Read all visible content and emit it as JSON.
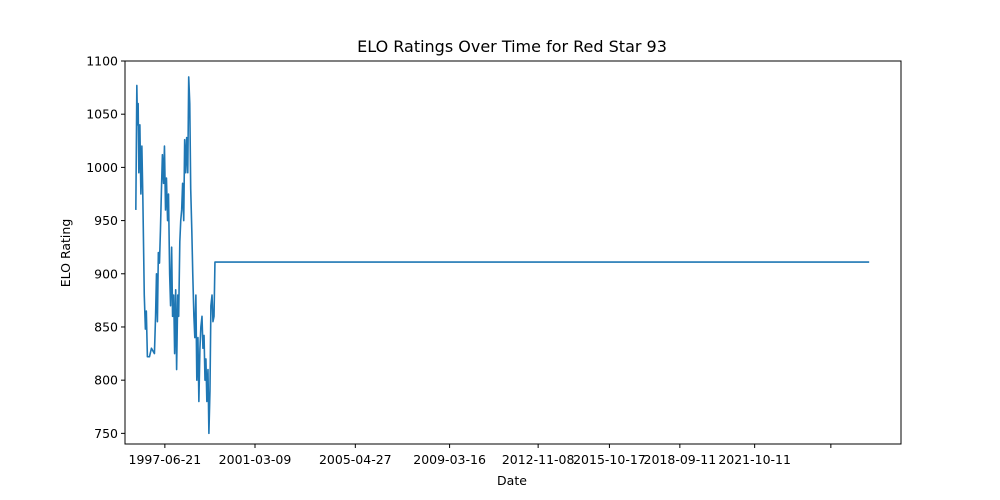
{
  "chart_data": {
    "type": "line",
    "title": "ELO Ratings Over Time for Red Star 93",
    "xlabel": "Date",
    "ylabel": "ELO Rating",
    "x_axis_type": "date",
    "xlim": [
      "1995-10-30",
      "2027-10-23"
    ],
    "ylim": [
      740,
      1100
    ],
    "x_ticks": [
      "1997-06-21",
      "2001-03-09",
      "2005-04-27",
      "2009-03-16",
      "2012-11-08",
      "2015-10-17",
      "2018-09-11",
      "2021-10-11",
      ""
    ],
    "x_tick_dates": [
      "1997-06-21",
      "2001-03-09",
      "2005-04-27",
      "2009-03-16",
      "2012-11-08",
      "2015-10-17",
      "2018-09-11",
      "2021-10-11",
      "2024-12-01"
    ],
    "y_ticks": [
      750,
      800,
      850,
      900,
      950,
      1000,
      1050,
      1100
    ],
    "grid": false,
    "legend": "none",
    "series": [
      {
        "color": "#1f77b4",
        "x": [
          "1996-04-10",
          "1996-04-25",
          "1996-05-05",
          "1996-05-15",
          "1996-05-25",
          "1996-06-10",
          "1996-06-25",
          "1996-07-10",
          "1996-07-25",
          "1996-08-15",
          "1996-09-01",
          "1996-09-15",
          "1996-10-01",
          "1996-11-01",
          "1996-12-01",
          "1997-01-15",
          "1997-02-01",
          "1997-02-15",
          "1997-03-01",
          "1997-03-15",
          "1997-04-01",
          "1997-04-15",
          "1997-05-01",
          "1997-05-15",
          "1997-06-01",
          "1997-06-15",
          "1997-07-01",
          "1997-07-15",
          "1997-08-01",
          "1997-08-15",
          "1997-09-01",
          "1997-09-15",
          "1997-10-01",
          "1997-10-15",
          "1997-11-01",
          "1997-11-15",
          "1997-12-01",
          "1997-12-15",
          "1998-01-01",
          "1998-01-15",
          "1998-02-01",
          "1998-02-15",
          "1998-03-01",
          "1998-03-15",
          "1998-04-01",
          "1998-04-15",
          "1998-05-01",
          "1998-05-15",
          "1998-06-01",
          "1998-06-15",
          "1998-07-01",
          "1998-07-15",
          "1998-08-01",
          "1998-08-15",
          "1998-09-01",
          "1998-09-15",
          "1998-10-01",
          "1998-10-15",
          "1998-11-01",
          "1998-11-15",
          "1998-12-01",
          "1998-12-15",
          "1999-01-01",
          "1999-01-15",
          "1999-02-01",
          "1999-02-15",
          "1999-03-01",
          "1999-03-15",
          "1999-04-01",
          "1999-04-15",
          "1999-05-01",
          "1999-05-15",
          "1999-06-01",
          "1999-06-15",
          "1999-07-01",
          "1999-07-15",
          "1999-08-01",
          "1999-08-15",
          "1999-09-01",
          "1999-09-15",
          "1999-10-01",
          "1999-10-15",
          "1999-11-01",
          "1999-11-15",
          "1999-12-01",
          "1999-12-15",
          "2000-01-01",
          "2000-01-15",
          "2000-02-01",
          "2000-02-15",
          "2000-03-01",
          "2000-03-15",
          "2000-04-01",
          "2000-04-15",
          "2026-07-01"
        ],
        "y": [
          960,
          1077,
          1040,
          1060,
          995,
          1040,
          975,
          1020,
          970,
          880,
          848,
          865,
          822,
          822,
          830,
          825,
          860,
          900,
          855,
          920,
          910,
          940,
          980,
          1012,
          985,
          1020,
          960,
          990,
          950,
          975,
          900,
          870,
          925,
          860,
          880,
          825,
          885,
          810,
          880,
          860,
          930,
          950,
          960,
          985,
          950,
          1026,
          995,
          1028,
          995,
          1085,
          1060,
          980,
          940,
          900,
          860,
          840,
          880,
          800,
          840,
          780,
          830,
          850,
          860,
          830,
          842,
          800,
          820,
          780,
          810,
          750,
          790,
          870,
          880,
          855,
          860,
          911,
          911,
          911,
          911,
          911,
          911,
          911,
          911,
          911,
          911,
          911,
          911,
          911,
          911,
          911,
          911,
          911,
          911,
          911,
          911
        ]
      }
    ]
  }
}
